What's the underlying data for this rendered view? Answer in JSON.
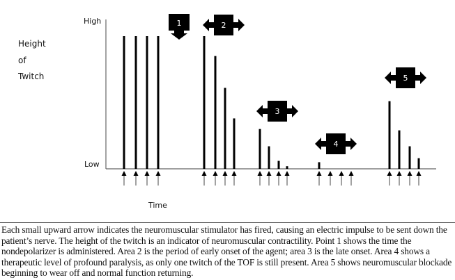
{
  "chart_data": {
    "type": "bar",
    "title": "",
    "ylabel_lines": [
      "Height",
      "of",
      "Twitch"
    ],
    "xlabel": "Time",
    "y_tick_labels": {
      "high": "High",
      "low": "Low"
    },
    "ylim": [
      0,
      100
    ],
    "groups": [
      {
        "marker": null,
        "values": [
          100,
          100,
          100,
          100
        ],
        "stimuli": 4
      },
      {
        "marker": "2",
        "values": [
          100,
          85,
          61,
          38
        ],
        "stimuli": 4
      },
      {
        "marker": "3",
        "values": [
          30,
          17,
          6,
          2
        ],
        "stimuli": 4
      },
      {
        "marker": "4",
        "values": [
          5,
          0,
          0,
          0
        ],
        "stimuli": 4
      },
      {
        "marker": "5",
        "values": [
          51,
          29,
          17,
          8
        ],
        "stimuli": 4
      }
    ],
    "point_markers": [
      {
        "label": "1",
        "meaning": "nondepolarizer administered"
      }
    ]
  },
  "caption": "Each small upward arrow indicates the neuromuscular stimulator has fired, causing an electric impulse to be sent down the patient’s nerve. The height of the twitch is an indicator of neuromuscular contractility. Point 1 shows the time the nondepolarizer is administered. Area 2 is the period of early onset of the agent; area 3 is the late onset. Area 4 shows a therapeutic level of profound paralysis, as only one twitch of the TOF is still present. Area 5 shows neuromuscular blockade beginning to wear off and normal function returning.",
  "colors": {
    "bar": "#000000",
    "axis": "#666666",
    "arrow": "#444444"
  }
}
